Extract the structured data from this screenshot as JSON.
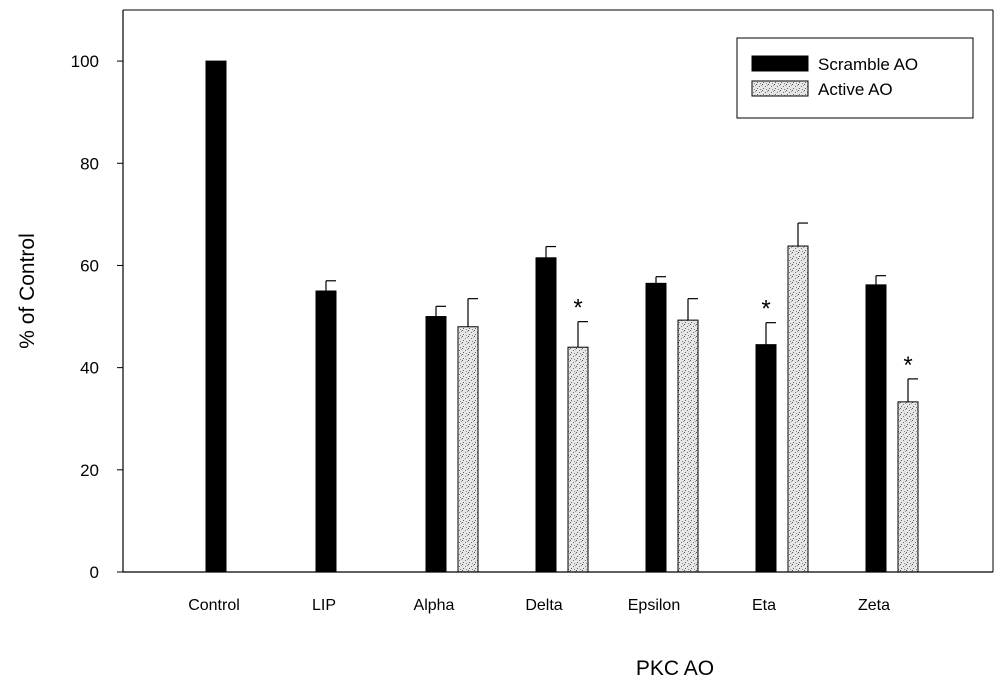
{
  "chart_data": {
    "type": "bar",
    "xlabel": "PKC AO",
    "ylabel": "% of Control",
    "ylim": [
      0,
      110
    ],
    "yticks": [
      0,
      20,
      40,
      60,
      80,
      100
    ],
    "categories": [
      "Control",
      "LIP",
      "Alpha",
      "Delta",
      "Epsilon",
      "Eta",
      "Zeta"
    ],
    "series": [
      {
        "name": "Scramble AO",
        "color": "#000000",
        "values": [
          100,
          55,
          50,
          61.5,
          56.5,
          44.5,
          56.2
        ],
        "errors": [
          0,
          2,
          2,
          2.2,
          1.3,
          4.3,
          1.8
        ],
        "significant": [
          false,
          false,
          false,
          false,
          false,
          true,
          false
        ]
      },
      {
        "name": "Active AO",
        "color": "#d8d8d8",
        "values": [
          null,
          null,
          48,
          44,
          49.3,
          63.8,
          33.3
        ],
        "errors": [
          null,
          null,
          5.5,
          5,
          4.2,
          4.5,
          4.5
        ],
        "significant": [
          false,
          false,
          false,
          true,
          false,
          false,
          true
        ]
      }
    ],
    "significance_marker": "*",
    "legend_position": "top-right",
    "grid": false
  }
}
